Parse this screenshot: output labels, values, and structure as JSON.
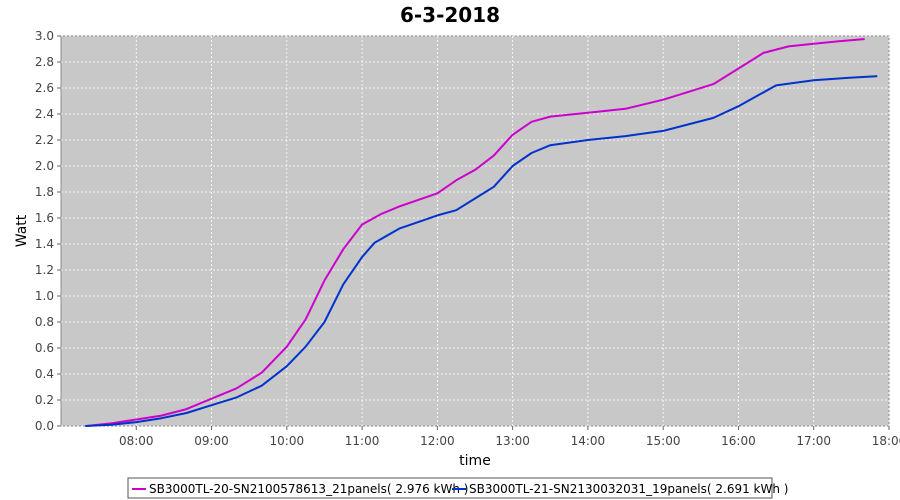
{
  "chart_data": {
    "type": "line",
    "title": "6-3-2018",
    "xlabel": "time",
    "ylabel": "Watt",
    "xlim": [
      "07:00",
      "18:00"
    ],
    "ylim": [
      0.0,
      3.0
    ],
    "x_ticks": [
      "08:00",
      "09:00",
      "10:00",
      "11:00",
      "12:00",
      "13:00",
      "14:00",
      "15:00",
      "16:00",
      "17:00",
      "18:00"
    ],
    "y_ticks": [
      "0.0",
      "0.2",
      "0.4",
      "0.6",
      "0.8",
      "1.0",
      "1.2",
      "1.4",
      "1.6",
      "1.8",
      "2.0",
      "2.2",
      "2.4",
      "2.6",
      "2.8",
      "3.0"
    ],
    "grid": true,
    "legend_position": "bottom",
    "plot_background": "#c8c8c8",
    "series": [
      {
        "name": "SB3000TL-20-SN2100578613_21panels( 2.976 kWh )",
        "color": "#cc00cc",
        "points": [
          [
            "07:20",
            0.0
          ],
          [
            "07:40",
            0.02
          ],
          [
            "08:00",
            0.05
          ],
          [
            "08:20",
            0.08
          ],
          [
            "08:40",
            0.13
          ],
          [
            "09:00",
            0.21
          ],
          [
            "09:20",
            0.29
          ],
          [
            "09:40",
            0.41
          ],
          [
            "10:00",
            0.61
          ],
          [
            "10:15",
            0.82
          ],
          [
            "10:30",
            1.12
          ],
          [
            "10:45",
            1.36
          ],
          [
            "11:00",
            1.55
          ],
          [
            "11:15",
            1.63
          ],
          [
            "11:30",
            1.69
          ],
          [
            "12:00",
            1.79
          ],
          [
            "12:15",
            1.89
          ],
          [
            "12:30",
            1.97
          ],
          [
            "12:45",
            2.08
          ],
          [
            "13:00",
            2.24
          ],
          [
            "13:15",
            2.34
          ],
          [
            "13:30",
            2.38
          ],
          [
            "14:00",
            2.41
          ],
          [
            "14:30",
            2.44
          ],
          [
            "15:00",
            2.51
          ],
          [
            "15:20",
            2.57
          ],
          [
            "15:40",
            2.63
          ],
          [
            "16:00",
            2.75
          ],
          [
            "16:20",
            2.87
          ],
          [
            "16:40",
            2.92
          ],
          [
            "17:00",
            2.94
          ],
          [
            "17:20",
            2.96
          ],
          [
            "17:40",
            2.976
          ]
        ]
      },
      {
        "name": "SB3000TL-21-SN2130032031_19panels( 2.691 kWh )",
        "color": "#0033cc",
        "points": [
          [
            "07:20",
            0.0
          ],
          [
            "07:40",
            0.01
          ],
          [
            "08:00",
            0.03
          ],
          [
            "08:20",
            0.06
          ],
          [
            "08:40",
            0.1
          ],
          [
            "09:00",
            0.16
          ],
          [
            "09:20",
            0.22
          ],
          [
            "09:40",
            0.31
          ],
          [
            "10:00",
            0.46
          ],
          [
            "10:15",
            0.61
          ],
          [
            "10:30",
            0.8
          ],
          [
            "10:45",
            1.09
          ],
          [
            "11:00",
            1.3
          ],
          [
            "11:10",
            1.41
          ],
          [
            "11:30",
            1.52
          ],
          [
            "12:00",
            1.62
          ],
          [
            "12:15",
            1.66
          ],
          [
            "12:30",
            1.75
          ],
          [
            "12:45",
            1.84
          ],
          [
            "13:00",
            2.0
          ],
          [
            "13:15",
            2.1
          ],
          [
            "13:30",
            2.16
          ],
          [
            "14:00",
            2.2
          ],
          [
            "14:30",
            2.23
          ],
          [
            "15:00",
            2.27
          ],
          [
            "15:20",
            2.32
          ],
          [
            "15:40",
            2.37
          ],
          [
            "16:00",
            2.46
          ],
          [
            "16:15",
            2.54
          ],
          [
            "16:30",
            2.62
          ],
          [
            "17:00",
            2.66
          ],
          [
            "17:30",
            2.68
          ],
          [
            "17:50",
            2.691
          ]
        ]
      }
    ]
  }
}
